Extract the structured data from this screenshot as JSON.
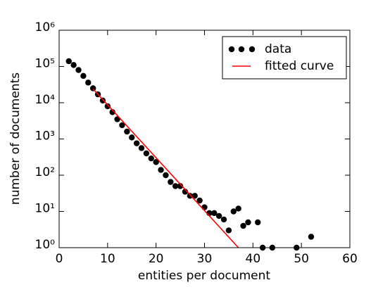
{
  "chart_data": {
    "type": "scatter",
    "x_label": "entities per document",
    "y_label": "number of documents",
    "xlim": [
      0,
      60
    ],
    "xticks": [
      0,
      10,
      20,
      30,
      40,
      50,
      60
    ],
    "ylim": [
      1,
      1000000
    ],
    "yticks": [
      {
        "value": 1,
        "label": "10⁰"
      },
      {
        "value": 10,
        "label": "10¹"
      },
      {
        "value": 100,
        "label": "10²"
      },
      {
        "value": 1000,
        "label": "10³"
      },
      {
        "value": 10000,
        "label": "10⁴"
      },
      {
        "value": 100000,
        "label": "10⁵"
      },
      {
        "value": 1000000,
        "label": "10⁶"
      }
    ],
    "log_y": true,
    "legend": "upper right",
    "series": [
      {
        "name": "data",
        "color": "#000000",
        "style": "markers",
        "x": [
          2,
          3,
          4,
          5,
          6,
          7,
          8,
          9,
          10,
          11,
          12,
          13,
          14,
          15,
          16,
          17,
          18,
          19,
          20,
          21,
          22,
          23,
          24,
          25,
          26,
          27,
          28,
          29,
          30,
          31,
          32,
          33,
          34,
          35,
          36,
          37,
          38,
          39,
          41,
          42,
          44,
          49,
          52
        ],
        "values": [
          140000,
          110000,
          80000,
          55000,
          36000,
          25000,
          17000,
          11500,
          8000,
          5500,
          3500,
          2400,
          1600,
          1100,
          760,
          560,
          400,
          290,
          230,
          140,
          100,
          65,
          50,
          50,
          35,
          27,
          27,
          20,
          13,
          9,
          9,
          7.5,
          6,
          3,
          10,
          12,
          4,
          5,
          5,
          1,
          1,
          1,
          2
        ]
      },
      {
        "name": "fitted curve",
        "color": "#ff0000",
        "style": "line",
        "x": [
          7,
          37
        ],
        "values": [
          24000,
          1
        ]
      }
    ]
  }
}
